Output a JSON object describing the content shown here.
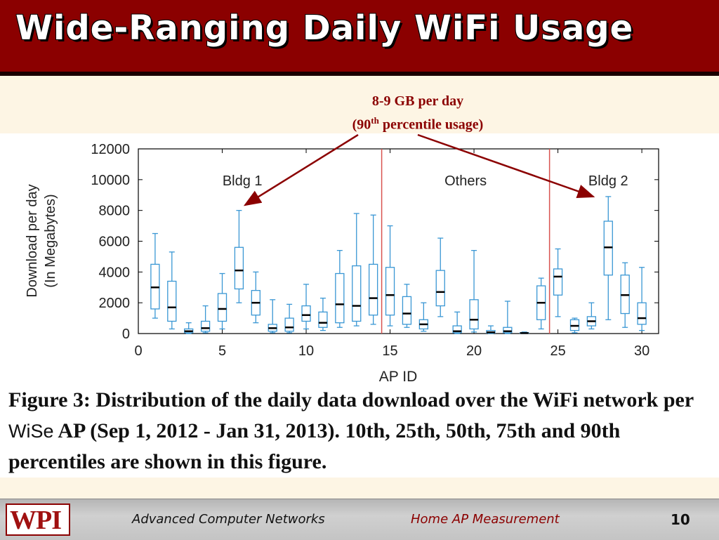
{
  "slide": {
    "title": "Wide-Ranging Daily WiFi Usage",
    "annotation": {
      "line1": "8-9 GB per day",
      "line2_pre": "(90",
      "line2_sup": "th",
      "line2_post": " percentile usage)"
    },
    "caption": {
      "part1": "Figure 3: Distribution of the daily data download over the WiFi network per ",
      "wise": "WiSe",
      "part2": " AP (Sep 1, 2012 - Jan 31, 2013).  10th, 25th, 50th, 75th and 90th percentiles are shown in this figure."
    },
    "footer": {
      "logo": "WPI",
      "course": "Advanced Computer Networks",
      "topic": "Home AP Measurement",
      "page": "10"
    },
    "colors": {
      "title_bg": "#8b0000",
      "box": "#3a97d4",
      "median": "#000000",
      "divider": "#d9534f",
      "arrow": "#8b0000"
    }
  },
  "chart_data": {
    "type": "box",
    "xlabel": "AP ID",
    "ylabel_line1": "Download per day",
    "ylabel_line2": "(In Megabytes)",
    "xlim": [
      0,
      31
    ],
    "ylim": [
      0,
      12000
    ],
    "xticks": [
      0,
      5,
      10,
      15,
      20,
      25,
      30
    ],
    "yticks": [
      0,
      2000,
      4000,
      6000,
      8000,
      10000,
      12000
    ],
    "dividers": [
      14.5,
      24.5
    ],
    "regions": [
      {
        "label": "Bldg 1",
        "x": 6.2
      },
      {
        "label": "Others",
        "x": 19.5
      },
      {
        "label": "Bldg 2",
        "x": 28.0
      }
    ],
    "boxes": [
      {
        "x": 1,
        "p10": 1000,
        "p25": 1600,
        "p50": 3000,
        "p75": 4500,
        "p90": 6500
      },
      {
        "x": 2,
        "p10": 300,
        "p25": 800,
        "p50": 1700,
        "p75": 3400,
        "p90": 5300
      },
      {
        "x": 3,
        "p10": 0,
        "p25": 50,
        "p50": 150,
        "p75": 300,
        "p90": 700
      },
      {
        "x": 4,
        "p10": 50,
        "p25": 150,
        "p50": 350,
        "p75": 800,
        "p90": 1800
      },
      {
        "x": 5,
        "p10": 300,
        "p25": 800,
        "p50": 1600,
        "p75": 2600,
        "p90": 3900
      },
      {
        "x": 6,
        "p10": 2000,
        "p25": 2900,
        "p50": 4100,
        "p75": 5600,
        "p90": 8000
      },
      {
        "x": 7,
        "p10": 700,
        "p25": 1200,
        "p50": 2000,
        "p75": 2800,
        "p90": 4000
      },
      {
        "x": 8,
        "p10": 50,
        "p25": 150,
        "p50": 350,
        "p75": 600,
        "p90": 2200
      },
      {
        "x": 9,
        "p10": 50,
        "p25": 150,
        "p50": 400,
        "p75": 1000,
        "p90": 1900
      },
      {
        "x": 10,
        "p10": 300,
        "p25": 800,
        "p50": 1200,
        "p75": 1800,
        "p90": 3200
      },
      {
        "x": 11,
        "p10": 200,
        "p25": 400,
        "p50": 700,
        "p75": 1400,
        "p90": 2300
      },
      {
        "x": 12,
        "p10": 400,
        "p25": 700,
        "p50": 1900,
        "p75": 3900,
        "p90": 5400
      },
      {
        "x": 13,
        "p10": 500,
        "p25": 800,
        "p50": 1800,
        "p75": 4400,
        "p90": 7800
      },
      {
        "x": 14,
        "p10": 600,
        "p25": 1200,
        "p50": 2300,
        "p75": 4500,
        "p90": 7700
      },
      {
        "x": 15,
        "p10": 500,
        "p25": 1200,
        "p50": 2500,
        "p75": 4300,
        "p90": 7000
      },
      {
        "x": 16,
        "p10": 400,
        "p25": 600,
        "p50": 1300,
        "p75": 2400,
        "p90": 3200
      },
      {
        "x": 17,
        "p10": 150,
        "p25": 300,
        "p50": 600,
        "p75": 900,
        "p90": 2000
      },
      {
        "x": 18,
        "p10": 1100,
        "p25": 1800,
        "p50": 2700,
        "p75": 4100,
        "p90": 6200
      },
      {
        "x": 19,
        "p10": 0,
        "p25": 50,
        "p50": 150,
        "p75": 500,
        "p90": 1400
      },
      {
        "x": 20,
        "p10": 100,
        "p25": 300,
        "p50": 900,
        "p75": 2200,
        "p90": 5400
      },
      {
        "x": 21,
        "p10": 0,
        "p25": 30,
        "p50": 80,
        "p75": 200,
        "p90": 500
      },
      {
        "x": 22,
        "p10": 0,
        "p25": 50,
        "p50": 150,
        "p75": 400,
        "p90": 2100
      },
      {
        "x": 23,
        "p10": 0,
        "p25": 10,
        "p50": 30,
        "p75": 60,
        "p90": 100
      },
      {
        "x": 24,
        "p10": 300,
        "p25": 900,
        "p50": 2000,
        "p75": 3100,
        "p90": 3600
      },
      {
        "x": 25,
        "p10": 1100,
        "p25": 2500,
        "p50": 3700,
        "p75": 4200,
        "p90": 5500
      },
      {
        "x": 26,
        "p10": 50,
        "p25": 200,
        "p50": 500,
        "p75": 900,
        "p90": 1000
      },
      {
        "x": 27,
        "p10": 300,
        "p25": 500,
        "p50": 800,
        "p75": 1100,
        "p90": 2000
      },
      {
        "x": 28,
        "p10": 900,
        "p25": 3800,
        "p50": 5600,
        "p75": 7300,
        "p90": 8900
      },
      {
        "x": 29,
        "p10": 400,
        "p25": 1300,
        "p50": 2500,
        "p75": 3800,
        "p90": 4600
      },
      {
        "x": 30,
        "p10": 200,
        "p25": 600,
        "p50": 1000,
        "p75": 2000,
        "p90": 4300
      }
    ]
  }
}
